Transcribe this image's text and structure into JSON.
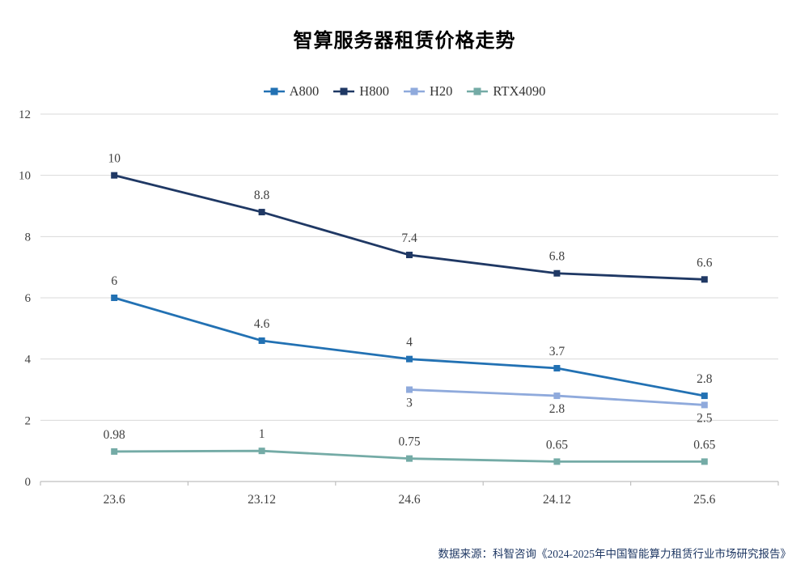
{
  "title": "智算服务器租赁价格走势",
  "footer": "数据来源：科智咨询《2024-2025年中国智能算力租赁行业市场研究报告》",
  "colors": {
    "grid": "#D9D9D9",
    "axis": "#BFBFBF",
    "label": "#404040",
    "title": "#000000",
    "footer": "#1F3864"
  },
  "chart_data": {
    "type": "line",
    "title": "智算服务器租赁价格走势",
    "categories": [
      "23.6",
      "23.12",
      "24.6",
      "24.12",
      "25.6"
    ],
    "series": [
      {
        "name": "A800",
        "color": "#2271B3",
        "values": [
          6,
          4.6,
          4,
          3.7,
          2.8
        ],
        "label_position": "above"
      },
      {
        "name": "H800",
        "color": "#1F3864",
        "values": [
          10,
          8.8,
          7.4,
          6.8,
          6.6
        ],
        "label_position": "above"
      },
      {
        "name": "H20",
        "color": "#8FAADC",
        "values": [
          null,
          null,
          3,
          2.8,
          2.5
        ],
        "label_position": "below"
      },
      {
        "name": "RTX4090",
        "color": "#74ABA6",
        "values": [
          0.98,
          1,
          0.75,
          0.65,
          0.65
        ],
        "label_position": "above"
      }
    ],
    "xlabel": "",
    "ylabel": "",
    "ylim": [
      0,
      12
    ],
    "ytick_step": 2,
    "grid": true,
    "legend_position": "top",
    "marker": "square",
    "data_labels": true
  }
}
